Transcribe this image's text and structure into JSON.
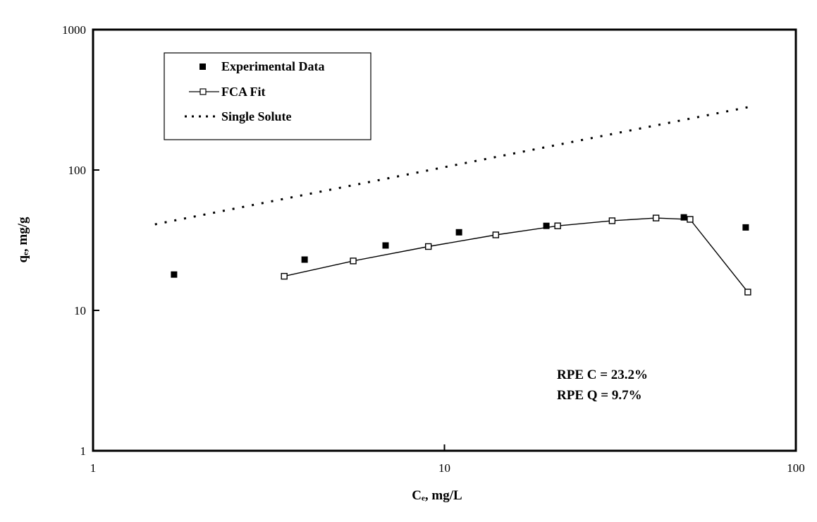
{
  "chart_data": {
    "type": "scatter",
    "xlabel": "Cₑ, mg/L",
    "ylabel": "qₑ, mg/g",
    "x_scale": "log",
    "y_scale": "log",
    "xlim": [
      1,
      100
    ],
    "ylim": [
      1,
      1000
    ],
    "x_ticks": [
      {
        "value": 1,
        "label": "1"
      },
      {
        "value": 10,
        "label": "10"
      },
      {
        "value": 100,
        "label": "100"
      }
    ],
    "y_ticks": [
      {
        "value": 1,
        "label": "1"
      },
      {
        "value": 10,
        "label": "10"
      },
      {
        "value": 100,
        "label": "100"
      },
      {
        "value": 1000,
        "label": "1000"
      }
    ],
    "grid": false,
    "legend_position": "top-left",
    "series": [
      {
        "name": "Experimental Data",
        "style": "filled-square-markers",
        "color": "#000000",
        "points": [
          {
            "x": 1.7,
            "y": 18
          },
          {
            "x": 4.0,
            "y": 23
          },
          {
            "x": 6.8,
            "y": 29
          },
          {
            "x": 11.0,
            "y": 36
          },
          {
            "x": 19.5,
            "y": 40
          },
          {
            "x": 48.0,
            "y": 46
          },
          {
            "x": 72.0,
            "y": 39
          }
        ]
      },
      {
        "name": "FCA Fit",
        "style": "line-open-square-markers",
        "color": "#000000",
        "points": [
          {
            "x": 3.5,
            "y": 17.5
          },
          {
            "x": 5.5,
            "y": 22.5
          },
          {
            "x": 9.0,
            "y": 28.5
          },
          {
            "x": 14.0,
            "y": 34.5
          },
          {
            "x": 21.0,
            "y": 40
          },
          {
            "x": 30.0,
            "y": 43.5
          },
          {
            "x": 40.0,
            "y": 45.5
          },
          {
            "x": 50.0,
            "y": 44.5
          },
          {
            "x": 73.0,
            "y": 13.5
          }
        ]
      },
      {
        "name": "Single Solute",
        "style": "dotted-line",
        "color": "#000000",
        "points": [
          {
            "x": 1.5,
            "y": 41
          },
          {
            "x": 73.0,
            "y": 280
          }
        ]
      }
    ],
    "annotations": [
      "RPE C = 23.2%",
      "RPE Q = 9.7%"
    ]
  }
}
